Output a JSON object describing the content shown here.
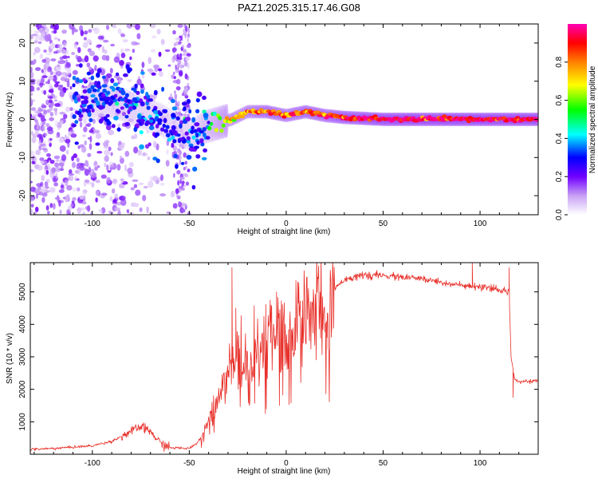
{
  "title": "PAZ1.2025.315.17.46.G08",
  "chart_data": [
    {
      "type": "heatmap",
      "name": "spectrogram",
      "xlabel": "Height of straight line (km)",
      "ylabel": "Frequency (Hz)",
      "xlim": [
        -132,
        130
      ],
      "ylim": [
        -25,
        25
      ],
      "xticks": [
        -100,
        -50,
        0,
        50,
        100
      ],
      "xtick_labels": [
        "-100",
        "-50",
        "0",
        "50",
        "100"
      ],
      "yticks": [
        -20,
        -10,
        0,
        10,
        20
      ],
      "ytick_labels": [
        "-20",
        "-10",
        "0",
        "10",
        "20"
      ],
      "colorbar": {
        "label": "Normalized spectral amplitude",
        "range": [
          0,
          1
        ],
        "ticks": [
          0.0,
          0.2,
          0.4,
          0.6,
          0.8
        ],
        "tick_labels": [
          "0.0",
          "0.2",
          "0.4",
          "0.6",
          "0.8"
        ],
        "colormap": [
          "#ffffff",
          "#c8a0f5",
          "#8800ff",
          "#0000ff",
          "#00ffff",
          "#00ff00",
          "#ffff00",
          "#ff8000",
          "#ff0000",
          "#ff00b4"
        ]
      },
      "ridge": {
        "x": [
          -105,
          -95,
          -85,
          -75,
          -65,
          -55,
          -48,
          -42,
          -35,
          -28,
          -20,
          -10,
          0,
          10,
          20,
          30,
          50,
          70,
          90,
          110,
          130
        ],
        "frequency": [
          4,
          5,
          4,
          2,
          0,
          -3,
          -4,
          -2,
          -1,
          0,
          2,
          2,
          1,
          2,
          1,
          0.5,
          0,
          0,
          0,
          0,
          0
        ],
        "amplitude": [
          0.25,
          0.3,
          0.35,
          0.3,
          0.3,
          0.3,
          0.3,
          0.45,
          0.6,
          0.7,
          0.75,
          0.85,
          0.8,
          0.85,
          0.85,
          0.9,
          0.95,
          0.95,
          0.95,
          0.95,
          0.95
        ]
      }
    },
    {
      "type": "line",
      "name": "snr",
      "xlabel": "Height of straight line (km)",
      "ylabel": "SNR (10 * v/v)",
      "xlim": [
        -132,
        130
      ],
      "ylim": [
        0,
        5900
      ],
      "xticks": [
        -100,
        -50,
        0,
        50,
        100
      ],
      "xtick_labels": [
        "-100",
        "-50",
        "0",
        "50",
        "100"
      ],
      "yticks": [
        1000,
        2000,
        3000,
        4000,
        5000
      ],
      "ytick_labels": [
        "1000",
        "2000",
        "3000",
        "4000",
        "5000"
      ],
      "color": "#e8302a",
      "x": [
        -132,
        -120,
        -110,
        -100,
        -90,
        -80,
        -75,
        -70,
        -65,
        -60,
        -50,
        -45,
        -40,
        -35,
        -30,
        -25,
        -20,
        -15,
        -10,
        -5,
        0,
        5,
        10,
        15,
        20,
        25,
        30,
        40,
        50,
        60,
        70,
        80,
        90,
        95,
        100,
        105,
        110,
        115,
        116,
        118,
        120,
        125,
        130
      ],
      "y": [
        150,
        180,
        220,
        260,
        400,
        700,
        850,
        700,
        350,
        200,
        180,
        400,
        1000,
        1800,
        2600,
        3000,
        2800,
        3000,
        3500,
        3800,
        4000,
        4300,
        4600,
        4600,
        4500,
        5100,
        5400,
        5500,
        5500,
        5450,
        5400,
        5300,
        5200,
        5150,
        5150,
        5100,
        5050,
        5000,
        3000,
        2300,
        2250,
        2250,
        2250
      ],
      "spikes": [
        {
          "x": -28,
          "y": 5750
        },
        {
          "x": -26,
          "y": 4500
        },
        {
          "x": -5,
          "y": 5000
        },
        {
          "x": 5,
          "y": 5350
        },
        {
          "x": 96,
          "y": 5900
        },
        {
          "x": 115,
          "y": 5750
        },
        {
          "x": 117,
          "y": 1750
        }
      ]
    }
  ]
}
